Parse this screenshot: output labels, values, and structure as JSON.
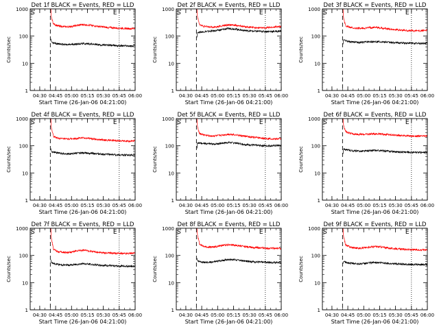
{
  "figure": {
    "ylabel": "Counts/sec",
    "xlabel": "Start Time (26-Jan-06 04:21:00)",
    "x_ticks": [
      "04:30",
      "04:45",
      "05:00",
      "05:15",
      "05:30",
      "05:45",
      "06:00"
    ],
    "x_tick_minutes": [
      9,
      24,
      39,
      54,
      69,
      84,
      99
    ],
    "y_ticks": [
      "1",
      "10",
      "100",
      "1000"
    ],
    "y_tick_values": [
      1,
      10,
      100,
      1000
    ],
    "marker_S": "S",
    "marker_E": "E",
    "colors": {
      "events": "#000000",
      "lld": "#ff0000",
      "axes": "#000000"
    }
  },
  "chart_data": [
    {
      "type": "line",
      "title": "Det 1f BLACK = Events, RED = LLD",
      "x_unit": "minutes after 04:21:00",
      "xlim": [
        0,
        99
      ],
      "ylim": [
        1,
        1000
      ],
      "yscale": "log",
      "vlines": {
        "dotted": [
          0,
          84
        ],
        "dashed": 19
      },
      "series": [
        {
          "name": "Events",
          "color": "#000000",
          "x": [
            19.5,
            20,
            22,
            26,
            30,
            35,
            40,
            45,
            50,
            55,
            60,
            65,
            70,
            75,
            80,
            85,
            90,
            95,
            99
          ],
          "y": [
            80,
            62,
            55,
            52,
            50,
            48,
            50,
            52,
            53,
            52,
            50,
            48,
            47,
            46,
            45,
            44,
            44,
            43,
            44
          ]
        },
        {
          "name": "LLD",
          "color": "#ff0000",
          "x": [
            19.5,
            20,
            22,
            26,
            30,
            35,
            40,
            45,
            50,
            55,
            60,
            65,
            70,
            75,
            80,
            85,
            90,
            95,
            99
          ],
          "y": [
            1000,
            500,
            280,
            240,
            225,
            220,
            230,
            250,
            265,
            255,
            240,
            225,
            215,
            205,
            200,
            195,
            190,
            188,
            195
          ]
        }
      ]
    },
    {
      "type": "line",
      "title": "Det 2f BLACK = Events, RED = LLD",
      "x_unit": "minutes after 04:21:00",
      "xlim": [
        0,
        99
      ],
      "ylim": [
        1,
        1000
      ],
      "yscale": "log",
      "vlines": {
        "dotted": [
          0,
          84
        ],
        "dashed": 19
      },
      "series": [
        {
          "name": "Events",
          "color": "#000000",
          "x": [
            19.5,
            20,
            22,
            26,
            30,
            35,
            40,
            45,
            50,
            55,
            60,
            65,
            70,
            75,
            80,
            85,
            90,
            95,
            99
          ],
          "y": [
            90,
            135,
            140,
            145,
            150,
            155,
            165,
            180,
            190,
            185,
            170,
            160,
            155,
            150,
            150,
            148,
            148,
            150,
            155
          ]
        },
        {
          "name": "LLD",
          "color": "#ff0000",
          "x": [
            19.5,
            20,
            22,
            26,
            30,
            35,
            40,
            45,
            50,
            55,
            60,
            65,
            70,
            75,
            80,
            85,
            90,
            95,
            99
          ],
          "y": [
            1000,
            500,
            260,
            230,
            220,
            215,
            225,
            245,
            260,
            250,
            235,
            220,
            210,
            205,
            200,
            205,
            210,
            220,
            230
          ]
        }
      ]
    },
    {
      "type": "line",
      "title": "Det 3f BLACK = Events, RED = LLD",
      "x_unit": "minutes after 04:21:00",
      "xlim": [
        0,
        99
      ],
      "ylim": [
        1,
        1000
      ],
      "yscale": "log",
      "vlines": {
        "dotted": [
          0,
          84
        ],
        "dashed": 19
      },
      "series": [
        {
          "name": "Events",
          "color": "#000000",
          "x": [
            19.5,
            20,
            22,
            26,
            30,
            35,
            40,
            45,
            50,
            55,
            60,
            65,
            70,
            75,
            80,
            85,
            90,
            95,
            99
          ],
          "y": [
            50,
            75,
            68,
            62,
            60,
            58,
            60,
            62,
            63,
            62,
            60,
            58,
            57,
            56,
            55,
            55,
            54,
            54,
            55
          ]
        },
        {
          "name": "LLD",
          "color": "#ff0000",
          "x": [
            19.5,
            20,
            22,
            26,
            30,
            35,
            40,
            45,
            50,
            55,
            60,
            65,
            70,
            75,
            80,
            85,
            90,
            95,
            99
          ],
          "y": [
            1000,
            450,
            240,
            210,
            195,
            190,
            195,
            205,
            210,
            200,
            190,
            180,
            172,
            165,
            160,
            158,
            156,
            160,
            165
          ]
        }
      ]
    },
    {
      "type": "line",
      "title": "Det 4f BLACK = Events, RED = LLD",
      "x_unit": "minutes after 04:21:00",
      "xlim": [
        0,
        99
      ],
      "ylim": [
        1,
        1000
      ],
      "yscale": "log",
      "vlines": {
        "dotted": [
          0,
          84
        ],
        "dashed": 19
      },
      "series": [
        {
          "name": "Events",
          "color": "#000000",
          "x": [
            19.5,
            20,
            22,
            26,
            30,
            35,
            40,
            45,
            50,
            55,
            60,
            65,
            70,
            75,
            80,
            85,
            90,
            95,
            99
          ],
          "y": [
            80,
            62,
            58,
            55,
            52,
            50,
            52,
            54,
            55,
            54,
            52,
            50,
            49,
            48,
            47,
            46,
            46,
            45,
            46
          ]
        },
        {
          "name": "LLD",
          "color": "#ff0000",
          "x": [
            19.5,
            20,
            22,
            26,
            30,
            35,
            40,
            45,
            50,
            55,
            60,
            65,
            70,
            75,
            80,
            85,
            90,
            95,
            99
          ],
          "y": [
            1000,
            450,
            220,
            190,
            180,
            175,
            180,
            190,
            195,
            188,
            178,
            170,
            163,
            158,
            155,
            152,
            150,
            150,
            155
          ]
        }
      ]
    },
    {
      "type": "line",
      "title": "Det 5f BLACK = Events, RED = LLD",
      "x_unit": "minutes after 04:21:00",
      "xlim": [
        0,
        99
      ],
      "ylim": [
        1,
        1000
      ],
      "yscale": "log",
      "vlines": {
        "dotted": [
          0,
          84
        ],
        "dashed": 19
      },
      "series": [
        {
          "name": "Events",
          "color": "#000000",
          "x": [
            19.5,
            20,
            22,
            26,
            30,
            35,
            40,
            45,
            50,
            55,
            60,
            65,
            70,
            75,
            80,
            85,
            90,
            95,
            99
          ],
          "y": [
            80,
            130,
            125,
            120,
            118,
            115,
            120,
            128,
            132,
            128,
            120,
            112,
            108,
            104,
            102,
            100,
            100,
            102,
            104
          ]
        },
        {
          "name": "LLD",
          "color": "#ff0000",
          "x": [
            19.5,
            20,
            22,
            26,
            30,
            35,
            40,
            45,
            50,
            55,
            60,
            65,
            70,
            75,
            80,
            85,
            90,
            95,
            99
          ],
          "y": [
            1000,
            500,
            280,
            250,
            235,
            228,
            235,
            250,
            265,
            258,
            240,
            222,
            210,
            200,
            192,
            185,
            180,
            178,
            180
          ]
        }
      ]
    },
    {
      "type": "line",
      "title": "Det 6f BLACK = Events, RED = LLD",
      "x_unit": "minutes after 04:21:00",
      "xlim": [
        0,
        99
      ],
      "ylim": [
        1,
        1000
      ],
      "yscale": "log",
      "vlines": {
        "dotted": [
          0,
          84
        ],
        "dashed": 19
      },
      "series": [
        {
          "name": "Events",
          "color": "#000000",
          "x": [
            19.5,
            20,
            22,
            26,
            30,
            35,
            40,
            45,
            50,
            55,
            60,
            65,
            70,
            75,
            80,
            85,
            90,
            95,
            99
          ],
          "y": [
            50,
            78,
            72,
            68,
            65,
            63,
            64,
            66,
            67,
            66,
            64,
            62,
            60,
            59,
            58,
            57,
            57,
            56,
            57
          ]
        },
        {
          "name": "LLD",
          "color": "#ff0000",
          "x": [
            19.5,
            20,
            22,
            26,
            30,
            35,
            40,
            45,
            50,
            55,
            60,
            65,
            70,
            75,
            80,
            85,
            90,
            95,
            99
          ],
          "y": [
            1000,
            550,
            330,
            290,
            270,
            262,
            265,
            272,
            278,
            272,
            262,
            252,
            244,
            238,
            232,
            228,
            226,
            226,
            228
          ]
        }
      ]
    },
    {
      "type": "line",
      "title": "Det 7f BLACK = Events, RED = LLD",
      "x_unit": "minutes after 04:21:00",
      "xlim": [
        0,
        99
      ],
      "ylim": [
        1,
        1000
      ],
      "yscale": "log",
      "vlines": {
        "dotted": [
          0,
          84
        ],
        "dashed": 19
      },
      "series": [
        {
          "name": "Events",
          "color": "#000000",
          "x": [
            19.5,
            20,
            22,
            26,
            30,
            35,
            40,
            45,
            50,
            55,
            60,
            65,
            70,
            75,
            80,
            85,
            90,
            95,
            99
          ],
          "y": [
            70,
            55,
            50,
            47,
            45,
            44,
            45,
            48,
            50,
            48,
            46,
            44,
            43,
            42,
            41,
            41,
            40,
            40,
            41
          ]
        },
        {
          "name": "LLD",
          "color": "#ff0000",
          "x": [
            19.5,
            20,
            22,
            26,
            30,
            35,
            40,
            45,
            50,
            55,
            60,
            65,
            70,
            75,
            80,
            85,
            90,
            95,
            99
          ],
          "y": [
            1000,
            420,
            170,
            140,
            130,
            128,
            135,
            148,
            155,
            148,
            138,
            130,
            125,
            122,
            120,
            118,
            118,
            120,
            125
          ]
        }
      ]
    },
    {
      "type": "line",
      "title": "Det 8f BLACK = Events, RED = LLD",
      "x_unit": "minutes after 04:21:00",
      "xlim": [
        0,
        99
      ],
      "ylim": [
        1,
        1000
      ],
      "yscale": "log",
      "vlines": {
        "dotted": [
          0,
          84
        ],
        "dashed": 19
      },
      "series": [
        {
          "name": "Events",
          "color": "#000000",
          "x": [
            19.5,
            20,
            22,
            26,
            30,
            35,
            40,
            45,
            50,
            55,
            60,
            65,
            70,
            75,
            80,
            85,
            90,
            95,
            99
          ],
          "y": [
            80,
            62,
            58,
            56,
            55,
            58,
            62,
            68,
            72,
            70,
            66,
            62,
            60,
            58,
            57,
            56,
            55,
            55,
            56
          ]
        },
        {
          "name": "LLD",
          "color": "#ff0000",
          "x": [
            19.5,
            20,
            22,
            26,
            30,
            35,
            40,
            45,
            50,
            55,
            60,
            65,
            70,
            75,
            80,
            85,
            90,
            95,
            99
          ],
          "y": [
            1000,
            550,
            260,
            215,
            200,
            205,
            220,
            240,
            250,
            240,
            225,
            212,
            202,
            195,
            190,
            185,
            182,
            182,
            185
          ]
        }
      ]
    },
    {
      "type": "line",
      "title": "Det 9f BLACK = Events, RED = LLD",
      "x_unit": "minutes after 04:21:00",
      "xlim": [
        0,
        99
      ],
      "ylim": [
        1,
        1000
      ],
      "yscale": "log",
      "vlines": {
        "dotted": [
          0,
          84
        ],
        "dashed": 19
      },
      "series": [
        {
          "name": "Events",
          "color": "#000000",
          "x": [
            19.5,
            20,
            22,
            26,
            30,
            35,
            40,
            45,
            50,
            55,
            60,
            65,
            70,
            75,
            80,
            85,
            90,
            95,
            99
          ],
          "y": [
            50,
            60,
            56,
            52,
            50,
            49,
            51,
            54,
            55,
            54,
            52,
            50,
            49,
            48,
            47,
            47,
            46,
            46,
            47
          ]
        },
        {
          "name": "LLD",
          "color": "#ff0000",
          "x": [
            19.5,
            20,
            22,
            26,
            30,
            35,
            40,
            45,
            50,
            55,
            60,
            65,
            70,
            75,
            80,
            85,
            90,
            95,
            99
          ],
          "y": [
            1000,
            480,
            240,
            205,
            190,
            186,
            192,
            205,
            212,
            205,
            192,
            182,
            175,
            170,
            165,
            162,
            160,
            162,
            165
          ]
        }
      ]
    }
  ]
}
